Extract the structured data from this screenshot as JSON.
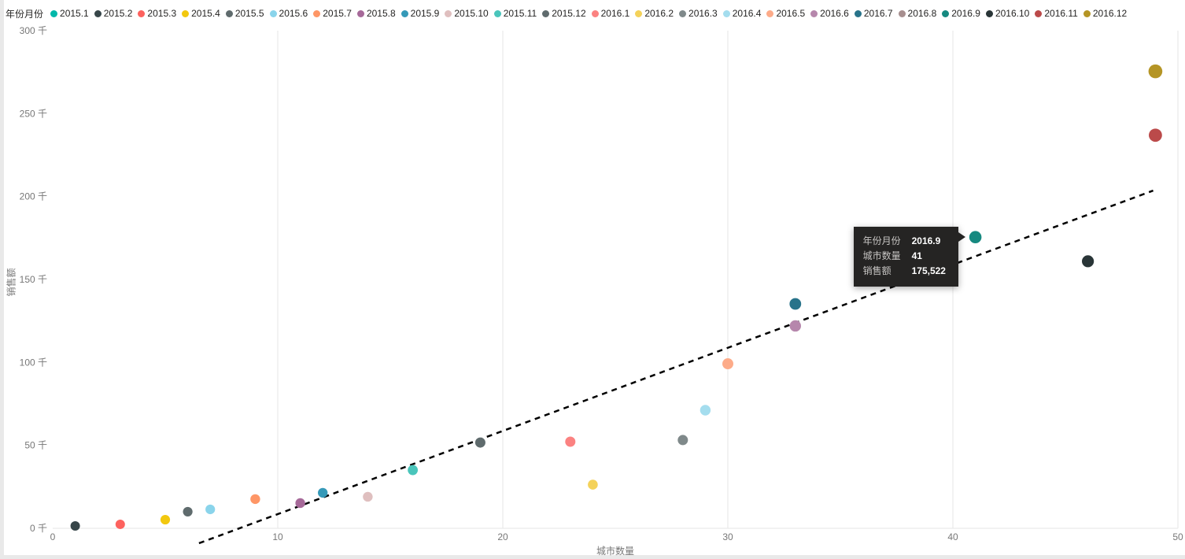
{
  "legend": {
    "title": "年份月份",
    "items": [
      {
        "label": "2015.1",
        "color": "#01B8AA"
      },
      {
        "label": "2015.2",
        "color": "#374649"
      },
      {
        "label": "2015.3",
        "color": "#FD625E"
      },
      {
        "label": "2015.4",
        "color": "#F2C80F"
      },
      {
        "label": "2015.5",
        "color": "#5F6B6D"
      },
      {
        "label": "2015.6",
        "color": "#8AD4EB"
      },
      {
        "label": "2015.7",
        "color": "#FE9666"
      },
      {
        "label": "2015.8",
        "color": "#A66999"
      },
      {
        "label": "2015.9",
        "color": "#3599B8"
      },
      {
        "label": "2015.10",
        "color": "#DFBFBF"
      },
      {
        "label": "2015.11",
        "color": "#4AC5BB"
      },
      {
        "label": "2015.12",
        "color": "#5F6B6D"
      },
      {
        "label": "2016.1",
        "color": "#FB8281"
      },
      {
        "label": "2016.2",
        "color": "#F4D25A"
      },
      {
        "label": "2016.3",
        "color": "#7F898A"
      },
      {
        "label": "2016.4",
        "color": "#A4DDEE"
      },
      {
        "label": "2016.5",
        "color": "#FDAB89"
      },
      {
        "label": "2016.6",
        "color": "#B687AC"
      },
      {
        "label": "2016.7",
        "color": "#28738A"
      },
      {
        "label": "2016.8",
        "color": "#A78F8F"
      },
      {
        "label": "2016.9",
        "color": "#168980"
      },
      {
        "label": "2016.10",
        "color": "#293537"
      },
      {
        "label": "2016.11",
        "color": "#BB4A4A"
      },
      {
        "label": "2016.12",
        "color": "#B59525"
      }
    ]
  },
  "chart_data": {
    "type": "scatter",
    "title": "",
    "xlabel": "城市数量",
    "ylabel": "销售额",
    "xlim": [
      0,
      50
    ],
    "ylim": [
      0,
      300000
    ],
    "x_ticks": [
      0,
      10,
      20,
      30,
      40,
      50
    ],
    "y_ticks": [
      {
        "value": 0,
        "label": "0 千"
      },
      {
        "value": 50000,
        "label": "50 千"
      },
      {
        "value": 100000,
        "label": "100 千"
      },
      {
        "value": 150000,
        "label": "150 千"
      },
      {
        "value": 200000,
        "label": "200 千"
      },
      {
        "value": 250000,
        "label": "250 千"
      },
      {
        "value": 300000,
        "label": "300 千"
      }
    ],
    "points": [
      {
        "series": "2015.2",
        "x": 1,
        "y": 1400
      },
      {
        "series": "2015.3",
        "x": 3,
        "y": 2400
      },
      {
        "series": "2015.4",
        "x": 5,
        "y": 5200
      },
      {
        "series": "2015.5",
        "x": 6,
        "y": 10000
      },
      {
        "series": "2015.6",
        "x": 7,
        "y": 11400
      },
      {
        "series": "2015.7",
        "x": 9,
        "y": 17600
      },
      {
        "series": "2015.8",
        "x": 11,
        "y": 15200
      },
      {
        "series": "2015.9",
        "x": 12,
        "y": 21400
      },
      {
        "series": "2015.10",
        "x": 14,
        "y": 19000
      },
      {
        "series": "2015.11",
        "x": 16,
        "y": 35100
      },
      {
        "series": "2015.12",
        "x": 19,
        "y": 51700
      },
      {
        "series": "2016.1",
        "x": 23,
        "y": 52200
      },
      {
        "series": "2016.2",
        "x": 24,
        "y": 26300
      },
      {
        "series": "2016.3",
        "x": 28,
        "y": 53200
      },
      {
        "series": "2016.4",
        "x": 29,
        "y": 71200
      },
      {
        "series": "2016.5",
        "x": 30,
        "y": 99200
      },
      {
        "series": "2016.6",
        "x": 33,
        "y": 122000
      },
      {
        "series": "2016.7",
        "x": 33,
        "y": 135300
      },
      {
        "series": "2016.9",
        "x": 41,
        "y": 175522
      },
      {
        "series": "2016.10",
        "x": 46,
        "y": 161000
      },
      {
        "series": "2016.11",
        "x": 49,
        "y": 237000
      },
      {
        "series": "2016.12",
        "x": 49,
        "y": 275500
      }
    ],
    "trendline": {
      "style": "dashed",
      "x1": 6.5,
      "y1": -9000,
      "x2": 48.9,
      "y2": 203600
    },
    "highlight_series": "2016.9"
  },
  "tooltip": {
    "rows": [
      {
        "label": "年份月份",
        "value": "2016.9"
      },
      {
        "label": "城市数量",
        "value": "41"
      },
      {
        "label": "销售额",
        "value": "175,522"
      }
    ]
  }
}
